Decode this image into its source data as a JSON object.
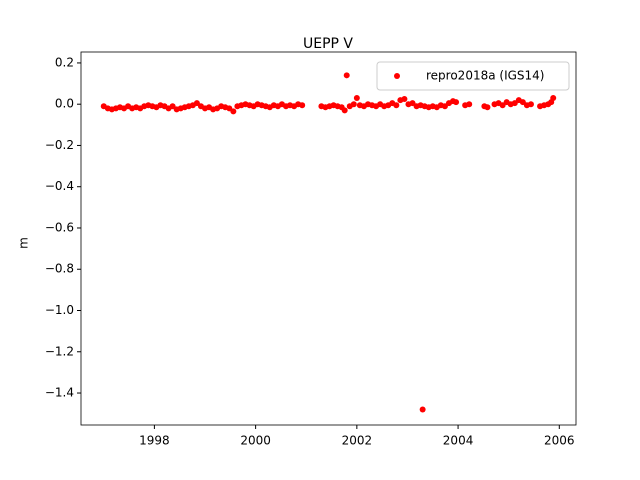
{
  "chart_data": {
    "type": "scatter",
    "title": "UEPP V",
    "y_label": "m",
    "legend_loc": "upper right",
    "xlim": [
      1996.55,
      2006.33
    ],
    "ylim": [
      -1.555,
      0.253
    ],
    "xticks": [
      1998,
      2000,
      2002,
      2004,
      2006
    ],
    "yticks": [
      {
        "value": 0.2,
        "label": "0.2"
      },
      {
        "value": 0.0,
        "label": "0.0"
      },
      {
        "value": -0.2,
        "label": "−0.2"
      },
      {
        "value": -0.4,
        "label": "−0.4"
      },
      {
        "value": -0.6,
        "label": "−0.6"
      },
      {
        "value": -0.8,
        "label": "−0.8"
      },
      {
        "value": -1.0,
        "label": "−1.0"
      },
      {
        "value": -1.2,
        "label": "−1.2"
      },
      {
        "value": -1.4,
        "label": "−1.4"
      }
    ],
    "x": [
      1997.0,
      1997.08,
      1997.16,
      1997.24,
      1997.32,
      1997.4,
      1997.48,
      1997.56,
      1997.64,
      1997.72,
      1997.8,
      1997.88,
      1997.96,
      1998.04,
      1998.12,
      1998.2,
      1998.28,
      1998.36,
      1998.44,
      1998.52,
      1998.6,
      1998.68,
      1998.76,
      1998.84,
      1998.92,
      1999.0,
      1999.08,
      1999.16,
      1999.24,
      1999.32,
      1999.4,
      1999.48,
      1999.56,
      1999.64,
      1999.72,
      1999.8,
      1999.88,
      1999.96,
      2000.04,
      2000.12,
      2000.2,
      2000.28,
      2000.36,
      2000.44,
      2000.52,
      2000.6,
      2000.68,
      2000.76,
      2000.84,
      2000.92,
      2001.3,
      2001.38,
      2001.46,
      2001.54,
      2001.62,
      2001.7,
      2001.76,
      2001.8,
      2001.86,
      2001.94,
      2002.0,
      2002.06,
      2002.14,
      2002.22,
      2002.3,
      2002.38,
      2002.46,
      2002.54,
      2002.62,
      2002.7,
      2002.78,
      2002.86,
      2002.94,
      2003.02,
      2003.1,
      2003.18,
      2003.26,
      2003.3,
      2003.34,
      2003.42,
      2003.5,
      2003.58,
      2003.66,
      2003.74,
      2003.82,
      2003.9,
      2003.96,
      2004.14,
      2004.22,
      2004.52,
      2004.58,
      2004.72,
      2004.8,
      2004.88,
      2004.96,
      2005.04,
      2005.12,
      2005.2,
      2005.28,
      2005.36,
      2005.44,
      2005.62,
      2005.7,
      2005.78,
      2005.84,
      2005.88
    ],
    "series": [
      {
        "name": "repro2018a (IGS14)",
        "color": "#ff0000",
        "values": [
          -0.01,
          -0.02,
          -0.025,
          -0.02,
          -0.015,
          -0.02,
          -0.01,
          -0.02,
          -0.015,
          -0.02,
          -0.01,
          -0.005,
          -0.01,
          -0.015,
          -0.005,
          -0.01,
          -0.02,
          -0.01,
          -0.025,
          -0.02,
          -0.015,
          -0.01,
          -0.005,
          0.005,
          -0.01,
          -0.02,
          -0.015,
          -0.025,
          -0.02,
          -0.01,
          -0.015,
          -0.02,
          -0.035,
          -0.01,
          -0.005,
          0.0,
          -0.005,
          -0.01,
          0.0,
          -0.005,
          -0.01,
          -0.015,
          -0.005,
          -0.01,
          0.0,
          -0.01,
          -0.005,
          -0.01,
          0.0,
          -0.005,
          -0.01,
          -0.015,
          -0.01,
          -0.005,
          -0.01,
          -0.015,
          -0.03,
          0.14,
          -0.01,
          0.0,
          0.03,
          -0.005,
          -0.01,
          0.0,
          -0.005,
          -0.01,
          0.0,
          -0.01,
          -0.005,
          0.005,
          -0.005,
          0.02,
          0.025,
          0.0,
          0.005,
          -0.01,
          -0.005,
          -1.48,
          -0.01,
          -0.015,
          -0.01,
          -0.015,
          -0.005,
          -0.01,
          0.005,
          0.015,
          0.01,
          -0.005,
          0.0,
          -0.01,
          -0.015,
          0.0,
          0.005,
          -0.005,
          0.01,
          0.0,
          0.005,
          0.02,
          0.01,
          -0.005,
          0.0,
          -0.01,
          -0.005,
          0.0,
          0.01,
          0.03
        ]
      }
    ]
  }
}
